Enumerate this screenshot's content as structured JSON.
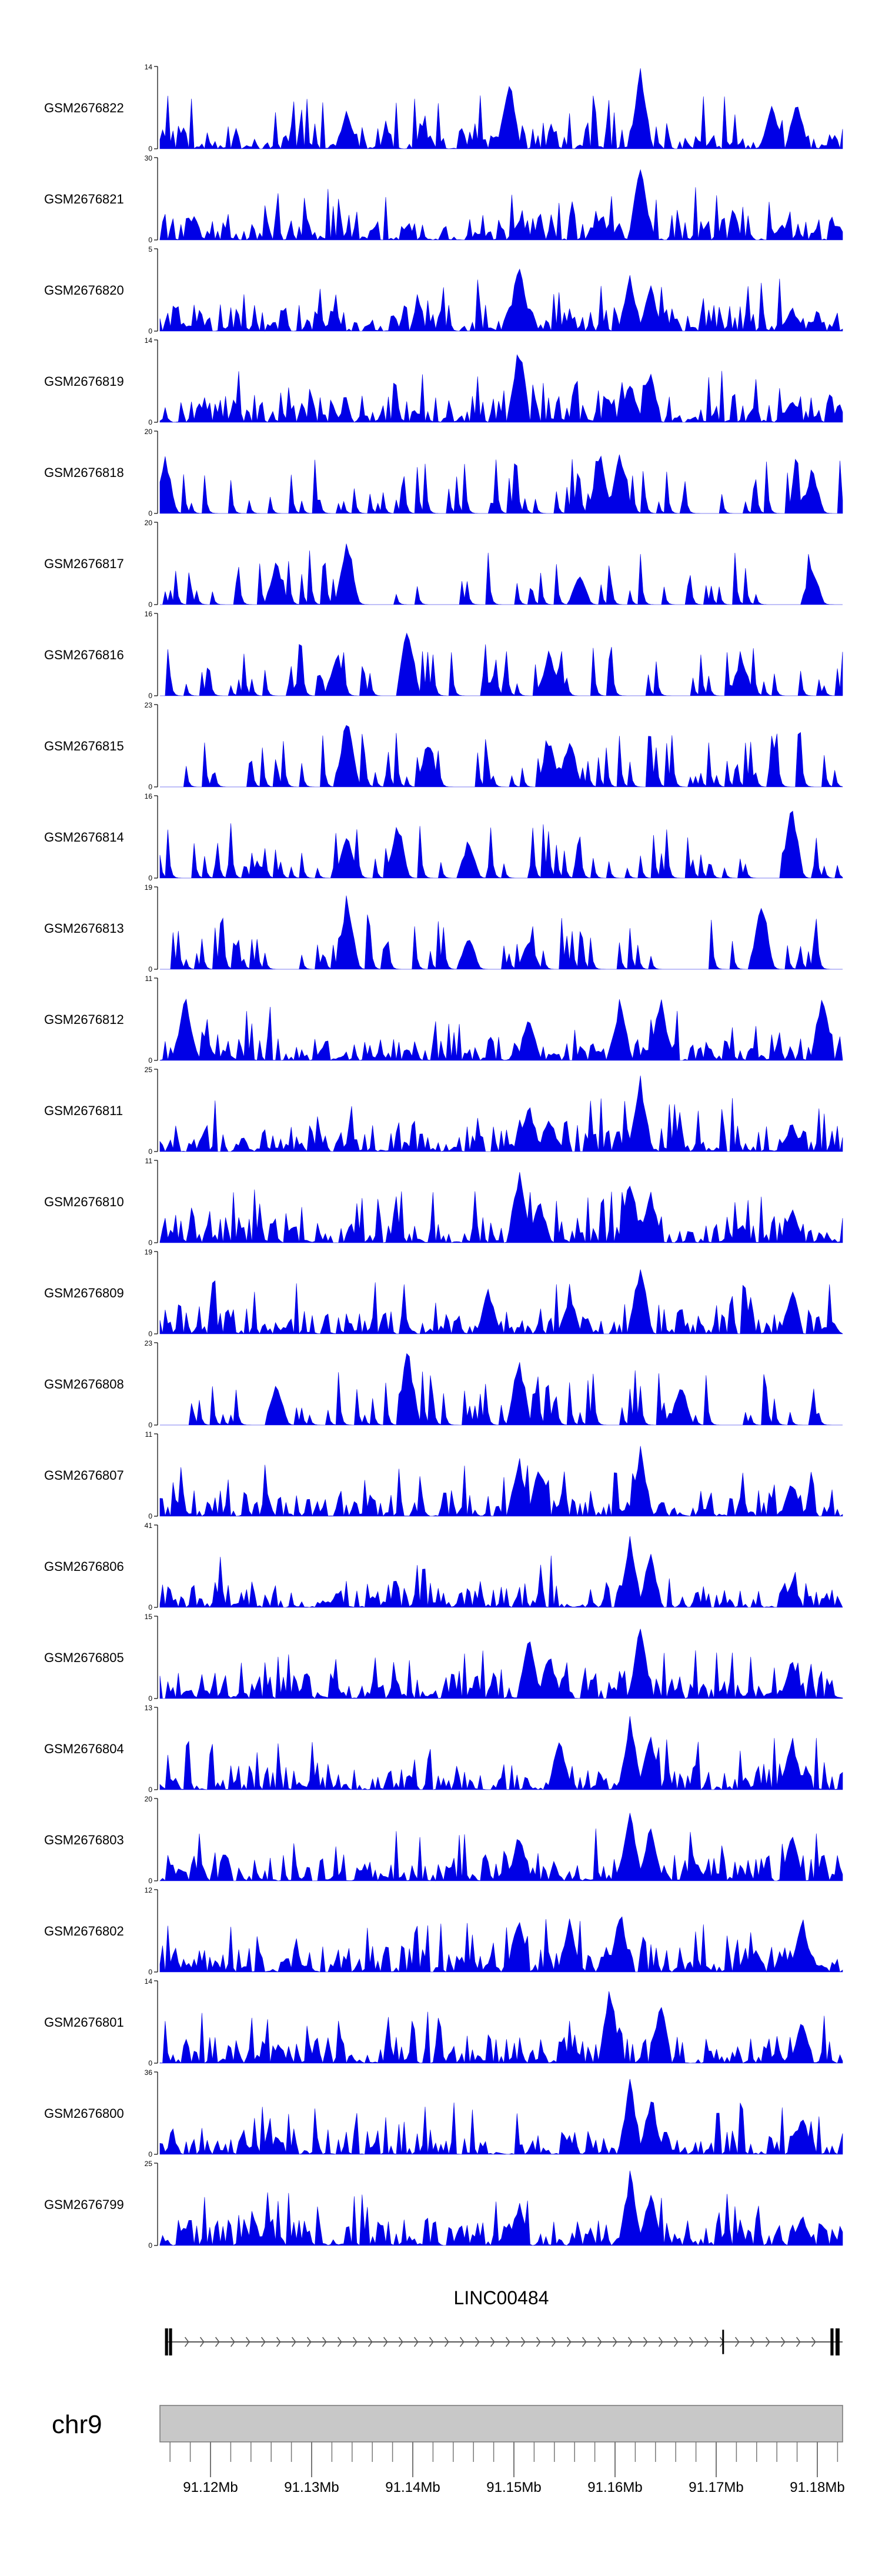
{
  "chart_data": {
    "type": "area",
    "title": "",
    "chromosome": "chr9",
    "genome_range_mb": [
      91.115,
      91.1825
    ],
    "track_ymin": 0,
    "colors": {
      "signal": "#0000e6",
      "axis": "#000000",
      "gene": "#000000",
      "intron_arrows": "#555555",
      "ideogram_fill": "#c8c8c8",
      "ideogram_stroke": "#777777"
    },
    "tracks": [
      {
        "name": "GSM2676822",
        "ymax": 14,
        "seed": 822,
        "style": "dense",
        "peaks": [
          [
            91.1335,
            0.5
          ],
          [
            91.1495,
            0.95
          ],
          [
            91.1625,
            1.0
          ],
          [
            91.1755,
            0.55
          ],
          [
            91.178,
            0.6
          ]
        ]
      },
      {
        "name": "GSM2676821",
        "ymax": 30,
        "seed": 821,
        "style": "dense",
        "peaks": [
          [
            91.1505,
            0.25
          ],
          [
            91.1585,
            0.3
          ],
          [
            91.1625,
            1.0
          ],
          [
            91.1765,
            0.2
          ]
        ]
      },
      {
        "name": "GSM2676820",
        "ymax": 5,
        "seed": 820,
        "style": "dense",
        "peaks": [
          [
            91.1505,
            0.95
          ],
          [
            91.1615,
            0.7
          ],
          [
            91.1635,
            0.6
          ],
          [
            91.1775,
            0.3
          ]
        ]
      },
      {
        "name": "GSM2676819",
        "ymax": 14,
        "seed": 819,
        "style": "dense",
        "peaks": [
          [
            91.1505,
            1.0
          ],
          [
            91.1615,
            0.55
          ],
          [
            91.1635,
            0.65
          ],
          [
            91.1775,
            0.3
          ]
        ]
      },
      {
        "name": "GSM2676818",
        "ymax": 20,
        "seed": 818,
        "style": "sparse",
        "peaks": [
          [
            91.1155,
            0.75
          ],
          [
            91.1585,
            0.8
          ],
          [
            91.1605,
            0.85
          ],
          [
            91.1795,
            0.55
          ]
        ]
      },
      {
        "name": "GSM2676817",
        "ymax": 20,
        "seed": 817,
        "style": "sparse",
        "peaks": [
          [
            91.1265,
            0.55
          ],
          [
            91.1335,
            0.9
          ],
          [
            91.1565,
            0.4
          ],
          [
            91.1795,
            0.5
          ]
        ]
      },
      {
        "name": "GSM2676816",
        "ymax": 16,
        "seed": 816,
        "style": "sparse",
        "peaks": [
          [
            91.1395,
            0.95
          ],
          [
            91.1325,
            0.6
          ],
          [
            91.1535,
            0.6
          ],
          [
            91.1725,
            0.55
          ]
        ]
      },
      {
        "name": "GSM2676815",
        "ymax": 23,
        "seed": 815,
        "style": "sparse",
        "peaks": [
          [
            91.1335,
            0.95
          ],
          [
            91.1415,
            0.6
          ],
          [
            91.1535,
            0.6
          ],
          [
            91.1555,
            0.65
          ]
        ]
      },
      {
        "name": "GSM2676814",
        "ymax": 16,
        "seed": 814,
        "style": "sparse",
        "peaks": [
          [
            91.1385,
            0.75
          ],
          [
            91.1335,
            0.55
          ],
          [
            91.1775,
            0.95
          ],
          [
            91.1455,
            0.5
          ]
        ]
      },
      {
        "name": "GSM2676813",
        "ymax": 19,
        "seed": 813,
        "style": "sparse",
        "peaks": [
          [
            91.1335,
            0.95
          ],
          [
            91.1455,
            0.45
          ],
          [
            91.1515,
            0.4
          ],
          [
            91.1745,
            0.95
          ]
        ]
      },
      {
        "name": "GSM2676812",
        "ymax": 11,
        "seed": 812,
        "style": "dense",
        "peaks": [
          [
            91.1175,
            0.85
          ],
          [
            91.1515,
            0.55
          ],
          [
            91.1605,
            0.8
          ],
          [
            91.1645,
            0.85
          ],
          [
            91.1805,
            0.9
          ]
        ]
      },
      {
        "name": "GSM2676811",
        "ymax": 25,
        "seed": 811,
        "style": "dense",
        "peaks": [
          [
            91.1515,
            0.6
          ],
          [
            91.1535,
            0.45
          ],
          [
            91.1625,
            0.95
          ],
          [
            91.1775,
            0.35
          ]
        ]
      },
      {
        "name": "GSM2676810",
        "ymax": 11,
        "seed": 810,
        "style": "dense",
        "peaks": [
          [
            91.1505,
            0.95
          ],
          [
            91.1525,
            0.6
          ],
          [
            91.1615,
            0.85
          ],
          [
            91.1635,
            0.7
          ],
          [
            91.1775,
            0.45
          ]
        ]
      },
      {
        "name": "GSM2676809",
        "ymax": 19,
        "seed": 809,
        "style": "dense",
        "peaks": [
          [
            91.1475,
            0.6
          ],
          [
            91.1555,
            0.5
          ],
          [
            91.1625,
            0.95
          ],
          [
            91.1775,
            0.6
          ]
        ]
      },
      {
        "name": "GSM2676808",
        "ymax": 23,
        "seed": 808,
        "style": "sparse",
        "peaks": [
          [
            91.1395,
            1.0
          ],
          [
            91.1505,
            0.9
          ],
          [
            91.1265,
            0.6
          ],
          [
            91.1665,
            0.55
          ]
        ]
      },
      {
        "name": "GSM2676807",
        "ymax": 11,
        "seed": 807,
        "style": "dense",
        "peaks": [
          [
            91.1505,
            0.75
          ],
          [
            91.1525,
            0.65
          ],
          [
            91.1625,
            0.9
          ],
          [
            91.1775,
            0.45
          ]
        ]
      },
      {
        "name": "GSM2676806",
        "ymax": 41,
        "seed": 806,
        "style": "dense",
        "peaks": [
          [
            91.1615,
            0.9
          ],
          [
            91.1635,
            0.7
          ],
          [
            91.1775,
            0.35
          ]
        ]
      },
      {
        "name": "GSM2676805",
        "ymax": 15,
        "seed": 805,
        "style": "dense",
        "peaks": [
          [
            91.1515,
            0.85
          ],
          [
            91.1535,
            0.6
          ],
          [
            91.1625,
            0.95
          ],
          [
            91.1775,
            0.5
          ]
        ]
      },
      {
        "name": "GSM2676804",
        "ymax": 13,
        "seed": 804,
        "style": "dense",
        "peaks": [
          [
            91.1545,
            0.65
          ],
          [
            91.1615,
            0.95
          ],
          [
            91.1635,
            0.75
          ],
          [
            91.1775,
            0.7
          ]
        ]
      },
      {
        "name": "GSM2676803",
        "ymax": 20,
        "seed": 803,
        "style": "dense",
        "peaks": [
          [
            91.1505,
            0.6
          ],
          [
            91.1615,
            0.9
          ],
          [
            91.1635,
            0.7
          ],
          [
            91.1775,
            0.6
          ]
        ]
      },
      {
        "name": "GSM2676802",
        "ymax": 12,
        "seed": 802,
        "style": "dense",
        "peaks": [
          [
            91.1505,
            0.75
          ],
          [
            91.1555,
            0.65
          ],
          [
            91.1605,
            0.8
          ],
          [
            91.1785,
            0.7
          ]
        ]
      },
      {
        "name": "GSM2676801",
        "ymax": 14,
        "seed": 801,
        "style": "dense",
        "peaks": [
          [
            91.1595,
            1.0
          ],
          [
            91.1645,
            0.8
          ],
          [
            91.1785,
            0.6
          ]
        ]
      },
      {
        "name": "GSM2676800",
        "ymax": 36,
        "seed": 800,
        "style": "dense",
        "peaks": [
          [
            91.1615,
            0.95
          ],
          [
            91.1635,
            0.7
          ],
          [
            91.1785,
            0.5
          ]
        ]
      },
      {
        "name": "GSM2676799",
        "ymax": 25,
        "seed": 799,
        "style": "dense",
        "peaks": [
          [
            91.1505,
            0.55
          ],
          [
            91.1615,
            0.95
          ],
          [
            91.1635,
            0.7
          ],
          [
            91.1785,
            0.4
          ]
        ]
      }
    ],
    "gene": {
      "name": "LINC00484",
      "start_mb": 91.1155,
      "end_mb": 91.1825,
      "exons_mb": [
        [
          91.1155,
          91.1158
        ],
        [
          91.1159,
          91.1162
        ],
        [
          91.1706,
          91.1707
        ],
        [
          91.1813,
          91.1816
        ],
        [
          91.1818,
          91.1822
        ]
      ]
    },
    "genome_axis": {
      "major_ticks_mb": [
        91.12,
        91.13,
        91.14,
        91.15,
        91.16,
        91.17,
        91.18
      ],
      "major_labels": [
        "91.12Mb",
        "91.13Mb",
        "91.14Mb",
        "91.15Mb",
        "91.16Mb",
        "91.17Mb",
        "91.18Mb"
      ],
      "minor_step_mb": 0.002
    }
  }
}
